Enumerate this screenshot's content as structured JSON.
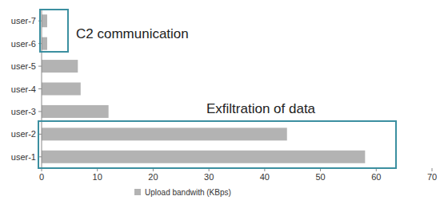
{
  "chart_data": {
    "type": "bar",
    "orientation": "horizontal",
    "categories": [
      "user-1",
      "user-2",
      "user-3",
      "user-4",
      "user-5",
      "user-6",
      "user-7"
    ],
    "series": [
      {
        "name": "Upload bandwith (KBps)",
        "color": "#b3b3b3",
        "values": [
          58,
          44,
          12,
          7,
          6.5,
          1,
          1
        ]
      }
    ],
    "xlim": [
      0,
      70
    ],
    "xticks": [
      0,
      10,
      20,
      30,
      40,
      50,
      60,
      70
    ],
    "grid": false,
    "legend": "bottom",
    "annotations": [
      {
        "text": "C2 communication"
      },
      {
        "text": "Exfiltration of data"
      }
    ]
  }
}
